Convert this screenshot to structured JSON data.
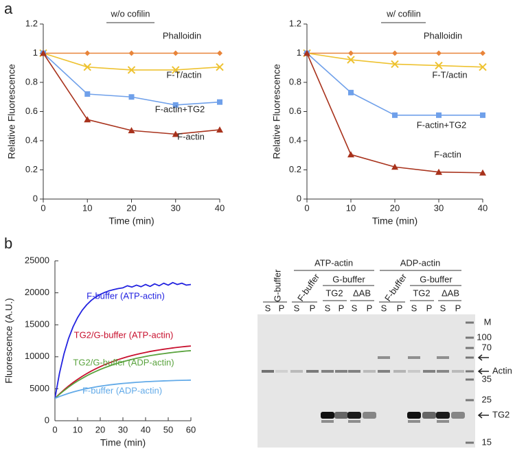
{
  "panel_labels": [
    "a",
    "b"
  ],
  "chart_data": [
    {
      "type": "line",
      "title": "w/o cofilin",
      "x_label": "Time (min)",
      "y_label": "Relative Fluorescence",
      "x": [
        0,
        10,
        20,
        30,
        40
      ],
      "xlim": [
        0,
        40
      ],
      "xticks": [
        0,
        10,
        20,
        30,
        40
      ],
      "ylim": [
        0,
        1.2
      ],
      "yticks": [
        0,
        0.2,
        0.4,
        0.6,
        0.8,
        1,
        1.2
      ],
      "series": [
        {
          "name": "Phalloidin",
          "color": "#e8843a",
          "marker": "diamond",
          "values": [
            1,
            1,
            1,
            1,
            1
          ]
        },
        {
          "name": "F-T/actin",
          "color": "#eec230",
          "marker": "x",
          "values": [
            1,
            0.905,
            0.885,
            0.885,
            0.905
          ]
        },
        {
          "name": "F-actin+TG2",
          "color": "#6fa0ea",
          "marker": "square",
          "values": [
            1,
            0.72,
            0.7,
            0.645,
            0.665
          ]
        },
        {
          "name": "F-actin",
          "color": "#a8321c",
          "marker": "triangle",
          "values": [
            1,
            0.545,
            0.47,
            0.445,
            0.475
          ]
        }
      ]
    },
    {
      "type": "line",
      "title": "w/  cofilin",
      "x_label": "Time (min)",
      "y_label": "Relative Fluorescence",
      "x": [
        0,
        10,
        20,
        30,
        40
      ],
      "xlim": [
        0,
        40
      ],
      "xticks": [
        0,
        10,
        20,
        30,
        40
      ],
      "ylim": [
        0,
        1.2
      ],
      "yticks": [
        0,
        0.2,
        0.4,
        0.6,
        0.8,
        1,
        1.2
      ],
      "series": [
        {
          "name": "Phalloidin",
          "color": "#e8843a",
          "marker": "diamond",
          "values": [
            1,
            1,
            1,
            1,
            1
          ]
        },
        {
          "name": "F-T/actin",
          "color": "#eec230",
          "marker": "x",
          "values": [
            1,
            0.955,
            0.925,
            0.915,
            0.905
          ]
        },
        {
          "name": "F-actin+TG2",
          "color": "#6fa0ea",
          "marker": "square",
          "values": [
            1,
            0.73,
            0.575,
            0.575,
            0.575
          ]
        },
        {
          "name": "F-actin",
          "color": "#a8321c",
          "marker": "triangle",
          "values": [
            1,
            0.305,
            0.22,
            0.185,
            0.18
          ]
        }
      ]
    },
    {
      "type": "line",
      "x_label": "Time (min)",
      "y_label": "Fluorescence (A.U.)",
      "x": [
        0,
        2,
        4,
        6,
        8,
        10,
        12,
        14,
        16,
        18,
        20,
        22,
        24,
        26,
        28,
        30,
        32,
        34,
        36,
        38,
        40,
        42,
        44,
        46,
        48,
        50,
        52,
        54,
        56,
        58,
        60
      ],
      "xlim": [
        0,
        60
      ],
      "xticks": [
        0,
        10,
        20,
        30,
        40,
        50,
        60
      ],
      "ylim": [
        0,
        25000
      ],
      "yticks": [
        0,
        5000,
        10000,
        15000,
        20000,
        25000
      ],
      "series": [
        {
          "name": "F-buffer (ATP-actin)",
          "color": "#2222e0",
          "values": [
            3500,
            7412,
            10460,
            12846,
            14686,
            16120,
            17253,
            18120,
            18810,
            19340,
            19750,
            20070,
            20320,
            20510,
            20670,
            20780,
            21100,
            20900,
            21200,
            20950,
            21300,
            21000,
            21400,
            21100,
            21500,
            21200,
            21600,
            21300,
            21500,
            21200,
            21300
          ]
        },
        {
          "name": "TG2/G-buffer (ATP-actin)",
          "color": "#c8102e",
          "values": [
            3500,
            4190,
            4830,
            5420,
            5970,
            6470,
            6930,
            7360,
            7760,
            8120,
            8460,
            8770,
            9050,
            9320,
            9570,
            9790,
            10000,
            10190,
            10370,
            10530,
            10680,
            10830,
            10950,
            11070,
            11180,
            11280,
            11380,
            11470,
            11550,
            11620,
            11680
          ]
        },
        {
          "name": "TG2/G-buffer (ADP-actin)",
          "color": "#5aa33e",
          "values": [
            3500,
            4130,
            4710,
            5250,
            5750,
            6210,
            6620,
            7020,
            7380,
            7710,
            8020,
            8300,
            8560,
            8810,
            9030,
            9230,
            9420,
            9590,
            9760,
            9900,
            10040,
            10180,
            10290,
            10400,
            10490,
            10590,
            10680,
            10760,
            10830,
            10900,
            10950
          ]
        },
        {
          "name": "F-buffer (ADP-actin)",
          "color": "#62aae8",
          "values": [
            3500,
            3790,
            4040,
            4280,
            4490,
            4680,
            4850,
            5010,
            5150,
            5280,
            5400,
            5500,
            5600,
            5680,
            5760,
            5830,
            5890,
            5950,
            6010,
            6050,
            6100,
            6130,
            6170,
            6200,
            6230,
            6250,
            6280,
            6300,
            6320,
            6330,
            6350
          ]
        }
      ]
    }
  ],
  "gel": {
    "groups": [
      "ATP-actin",
      "ADP-actin"
    ],
    "conditions": [
      "G-buffer",
      "F-buffer",
      "G-buffer",
      "F-buffer",
      "G-buffer"
    ],
    "subconditions": [
      "TG2",
      "ΔAB",
      "TG2",
      "ΔAB"
    ],
    "lanes": [
      "S",
      "P",
      "S",
      "P",
      "S",
      "P",
      "S",
      "P",
      "S",
      "P",
      "S",
      "P",
      "S",
      "P"
    ],
    "marker_title": "M",
    "markers": [
      "100",
      "70",
      "35",
      "25",
      "15"
    ],
    "arrows": [
      "Actin",
      "TG2"
    ]
  }
}
